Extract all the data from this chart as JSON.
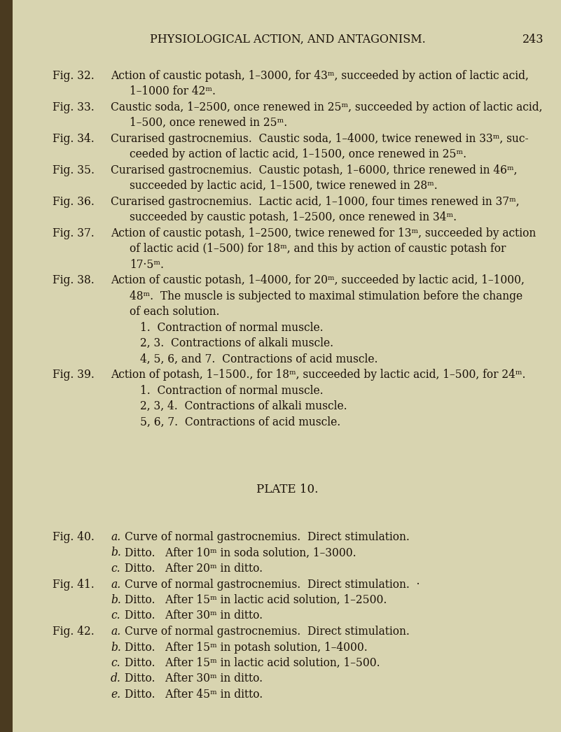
{
  "background_color": "#d8d4b0",
  "spine_color": "#4a3a20",
  "text_color": "#1a1008",
  "header_text": "PHYSIOLOGICAL ACTION, AND ANTAGONISM.",
  "page_number": "243",
  "font_size_header": 11.5,
  "font_size_body": 11.2,
  "font_size_section": 12.0,
  "lines": [
    {
      "type": "header",
      "text": "PHYSIOLOGICAL ACTION, AND ANTAGONISM.",
      "page_num": "243"
    },
    {
      "type": "blank_small"
    },
    {
      "type": "fig_start",
      "label": "Fig. 32.",
      "text": "Action of caustic potash, 1–3000, for 43ᵐ, succeeded by action of lactic acid,"
    },
    {
      "type": "fig_cont",
      "text": "1–1000 for 42ᵐ."
    },
    {
      "type": "fig_start",
      "label": "Fig. 33.",
      "text": "Caustic soda, 1–2500, once renewed in 25ᵐ, succeeded by action of lactic acid,"
    },
    {
      "type": "fig_cont",
      "text": "1–500, once renewed in 25ᵐ."
    },
    {
      "type": "fig_start",
      "label": "Fig. 34.",
      "text": "Curarised gastrocnemius.  Caustic soda, 1–4000, twice renewed in 33ᵐ, suc-"
    },
    {
      "type": "fig_cont",
      "text": "ceeded by action of lactic acid, 1–1500, once renewed in 25ᵐ."
    },
    {
      "type": "fig_start",
      "label": "Fig. 35.",
      "text": "Curarised gastrocnemius.  Caustic potash, 1–6000, thrice renewed in 46ᵐ,"
    },
    {
      "type": "fig_cont",
      "text": "succeeded by lactic acid, 1–1500, twice renewed in 28ᵐ."
    },
    {
      "type": "fig_start",
      "label": "Fig. 36.",
      "text": "Curarised gastrocnemius.  Lactic acid, 1–1000, four times renewed in 37ᵐ,"
    },
    {
      "type": "fig_cont",
      "text": "succeeded by caustic potash, 1–2500, once renewed in 34ᵐ."
    },
    {
      "type": "fig_start",
      "label": "Fig. 37.",
      "text": "Action of caustic potash, 1–2500, twice renewed for 13ᵐ, succeeded by action"
    },
    {
      "type": "fig_cont",
      "text": "of lactic acid (1–500) for 18ᵐ, and this by action of caustic potash for"
    },
    {
      "type": "fig_cont2",
      "text": "17·5ᵐ."
    },
    {
      "type": "fig_start",
      "label": "Fig. 38.",
      "text": "Action of caustic potash, 1–4000, for 20ᵐ, succeeded by lactic acid, 1–1000,"
    },
    {
      "type": "fig_cont",
      "text": "48ᵐ.  The muscle is subjected to maximal stimulation before the change"
    },
    {
      "type": "fig_cont",
      "text": "of each solution."
    },
    {
      "type": "indent_line",
      "text": "1.  Contraction of normal muscle."
    },
    {
      "type": "indent_line",
      "text": "2, 3.  Contractions of alkali muscle."
    },
    {
      "type": "indent_line",
      "text": "4, 5, 6, and 7.  Contractions of acid muscle."
    },
    {
      "type": "fig_start",
      "label": "Fig. 39.",
      "text": "Action of potash, 1–1500., for 18ᵐ, succeeded by lactic acid, 1–500, for 24ᵐ."
    },
    {
      "type": "indent_line",
      "text": "1.  Contraction of normal muscle."
    },
    {
      "type": "indent_line",
      "text": "2, 3, 4.  Contractions of alkali muscle."
    },
    {
      "type": "indent_line",
      "text": "5, 6, 7.  Contractions of acid muscle."
    },
    {
      "type": "blank_large"
    },
    {
      "type": "blank_large"
    },
    {
      "type": "blank_large"
    },
    {
      "type": "section_header",
      "text": "PLATE 10."
    },
    {
      "type": "blank_large"
    },
    {
      "type": "blank_small"
    },
    {
      "type": "fig40_start",
      "label": "Fig. 40.",
      "letter": "a.",
      "text": "Curve of normal gastrocnemius.  Direct stimulation."
    },
    {
      "type": "fig_sub",
      "letter": "b.",
      "text": "Ditto.   After 10ᵐ in soda solution, 1–3000."
    },
    {
      "type": "fig_sub",
      "letter": "c.",
      "text": "Ditto.   After 20ᵐ in ditto."
    },
    {
      "type": "fig40_start",
      "label": "Fig. 41.",
      "letter": "a.",
      "text": "Curve of normal gastrocnemius.  Direct stimulation.  ·"
    },
    {
      "type": "fig_sub",
      "letter": "b.",
      "text": "Ditto.   After 15ᵐ in lactic acid solution, 1–2500."
    },
    {
      "type": "fig_sub",
      "letter": "c.",
      "text": "Ditto.   After 30ᵐ in ditto."
    },
    {
      "type": "fig40_start",
      "label": "Fig. 42.",
      "letter": "a.",
      "text": "Curve of normal gastrocnemius.  Direct stimulation."
    },
    {
      "type": "fig_sub",
      "letter": "b.",
      "text": "Ditto.   After 15ᵐ in potash solution, 1–4000."
    },
    {
      "type": "fig_sub",
      "letter": "c.",
      "text": "Ditto.   After 15ᵐ in lactic acid solution, 1–500."
    },
    {
      "type": "fig_sub",
      "letter": "d.",
      "text": "Ditto.   After 30ᵐ in ditto."
    },
    {
      "type": "fig_sub",
      "letter": "e.",
      "text": "Ditto.   After 45ᵐ in ditto."
    }
  ]
}
